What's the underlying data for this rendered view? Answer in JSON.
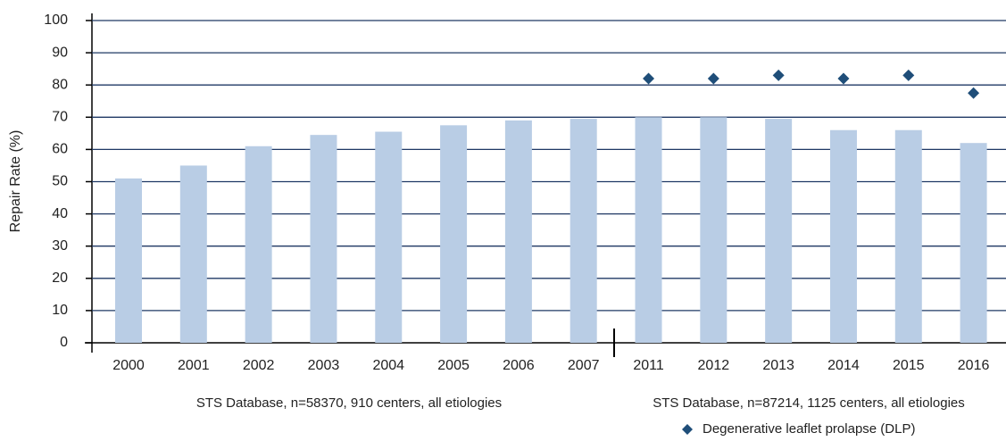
{
  "chart_data": {
    "type": "bar",
    "y_label": "Repair Rate (%)",
    "categories": [
      "2000",
      "2001",
      "2002",
      "2003",
      "2004",
      "2005",
      "2006",
      "2007",
      "2011",
      "2012",
      "2013",
      "2014",
      "2015",
      "2016"
    ],
    "series": [
      {
        "type": "bar",
        "color": "#b9cde5",
        "values": [
          51,
          55,
          61,
          64.5,
          65.5,
          67.5,
          69,
          69.5,
          70,
          70,
          69.5,
          66,
          66,
          62
        ]
      },
      {
        "type": "scatter",
        "name": "Degenerative leaflet prolapse (DLP)",
        "color": "#1f4e79",
        "values": [
          null,
          null,
          null,
          null,
          null,
          null,
          null,
          null,
          82,
          82,
          83,
          82,
          83,
          77.5
        ]
      }
    ],
    "annotations": [
      "STS Database, n=58370, 910 centers, all etiologies",
      "STS Database, n=87214, 1125 centers, all etiologies"
    ],
    "ylim": [
      0,
      100
    ],
    "yticks": [
      0,
      10,
      20,
      30,
      40,
      50,
      60,
      70,
      80,
      90,
      100
    ],
    "grid": true,
    "grid_color": "#1f3864"
  }
}
